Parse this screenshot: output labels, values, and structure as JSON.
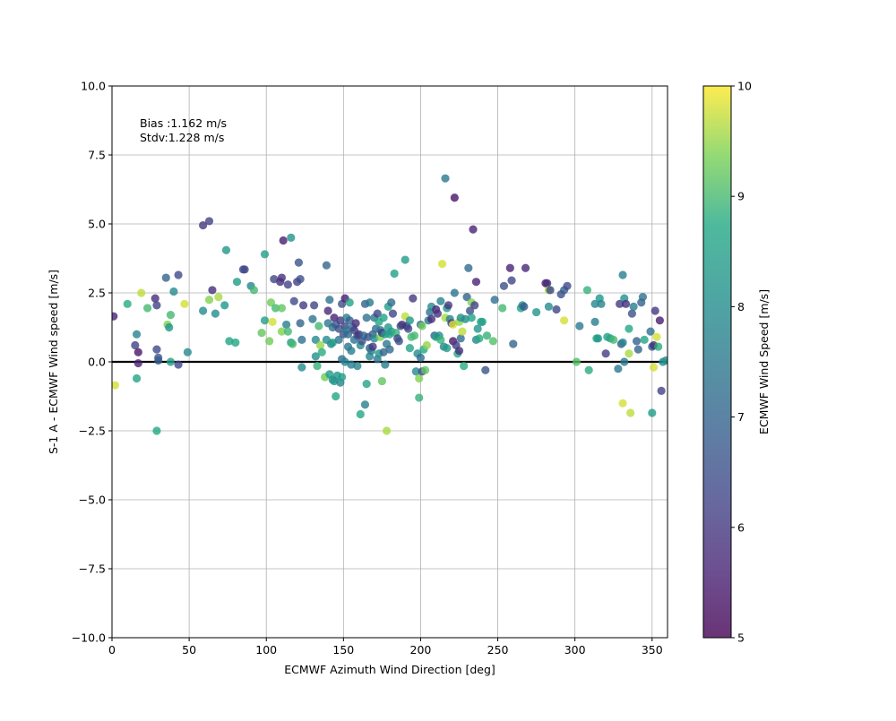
{
  "chart_data": {
    "type": "scatter",
    "xlabel": "ECMWF Azimuth Wind Direction [deg]",
    "ylabel": "S-1 A - ECMWF Wind speed [m/s]",
    "xlim": [
      0,
      360
    ],
    "ylim": [
      -10,
      10
    ],
    "xticks": [
      0,
      50,
      100,
      150,
      200,
      250,
      300,
      350
    ],
    "yticks": [
      -10.0,
      -7.5,
      -5.0,
      -2.5,
      0.0,
      2.5,
      5.0,
      7.5,
      10.0
    ],
    "xtick_labels": [
      "0",
      "50",
      "100",
      "150",
      "200",
      "250",
      "300",
      "350"
    ],
    "ytick_labels": [
      "−10.0",
      "−7.5",
      "−5.0",
      "−2.5",
      "0.0",
      "2.5",
      "5.0",
      "7.5",
      "10.0"
    ],
    "grid": true,
    "zero_line": 0,
    "annotations": [
      "Bias :1.162 m/s",
      "Stdv:1.228 m/s"
    ],
    "colorbar": {
      "label": "ECMWF Wind Speed [m/s]",
      "min": 5,
      "max": 10,
      "ticks": [
        5,
        6,
        7,
        8,
        9,
        10
      ],
      "tick_labels": [
        "5",
        "6",
        "7",
        "8",
        "9",
        "10"
      ],
      "colormap": "viridis"
    },
    "points": [
      [
        1,
        1.65,
        5.6
      ],
      [
        2,
        -0.85,
        9.8
      ],
      [
        10,
        2.1,
        8.8
      ],
      [
        15,
        0.6,
        6.2
      ],
      [
        16,
        1.0,
        7.8
      ],
      [
        16,
        -0.6,
        8.6
      ],
      [
        17,
        0.35,
        5.4
      ],
      [
        17,
        -0.05,
        5.6
      ],
      [
        19,
        2.5,
        9.7
      ],
      [
        23,
        1.95,
        9.0
      ],
      [
        28,
        2.3,
        5.8
      ],
      [
        29,
        0.45,
        6.4
      ],
      [
        29,
        2.05,
        6.2
      ],
      [
        29,
        -2.5,
        8.7
      ],
      [
        30,
        0.15,
        6.6
      ],
      [
        30,
        0.05,
        6.8
      ],
      [
        35,
        3.05,
        7.0
      ],
      [
        36,
        1.35,
        9.4
      ],
      [
        37,
        1.25,
        8.2
      ],
      [
        38,
        1.7,
        9.0
      ],
      [
        38,
        0.0,
        8.5
      ],
      [
        40,
        2.55,
        7.9
      ],
      [
        43,
        3.15,
        6.4
      ],
      [
        43,
        -0.1,
        6.3
      ],
      [
        47,
        2.1,
        9.8
      ],
      [
        49,
        0.35,
        7.9
      ],
      [
        59,
        1.85,
        8.0
      ],
      [
        59,
        4.95,
        6.0
      ],
      [
        63,
        2.25,
        9.4
      ],
      [
        63,
        5.1,
        6.2
      ],
      [
        65,
        2.6,
        5.8
      ],
      [
        67,
        1.75,
        8.0
      ],
      [
        69,
        2.35,
        9.6
      ],
      [
        73,
        2.05,
        8.3
      ],
      [
        74,
        4.05,
        8.3
      ],
      [
        76,
        0.75,
        8.6
      ],
      [
        80,
        0.7,
        8.7
      ],
      [
        81,
        2.9,
        8.4
      ],
      [
        85,
        3.35,
        6.5
      ],
      [
        86,
        3.35,
        6.3
      ],
      [
        90,
        2.75,
        7.8
      ],
      [
        92,
        2.6,
        9.0
      ],
      [
        97,
        1.05,
        9.2
      ],
      [
        99,
        1.5,
        8.5
      ],
      [
        99,
        3.9,
        8.5
      ],
      [
        102,
        0.75,
        9.3
      ],
      [
        103,
        2.15,
        9.3
      ],
      [
        104,
        1.45,
        9.8
      ],
      [
        105,
        3.0,
        6.3
      ],
      [
        106,
        1.95,
        9.0
      ],
      [
        109,
        2.9,
        5.8
      ],
      [
        110,
        1.1,
        9.4
      ],
      [
        110,
        1.95,
        9.2
      ],
      [
        110,
        3.05,
        5.9
      ],
      [
        111,
        4.4,
        5.5
      ],
      [
        113,
        1.35,
        7.6
      ],
      [
        114,
        1.1,
        9.0
      ],
      [
        114,
        2.8,
        6.2
      ],
      [
        116,
        0.7,
        8.4
      ],
      [
        116,
        4.5,
        8.2
      ],
      [
        117,
        0.65,
        9.0
      ],
      [
        118,
        2.2,
        6.4
      ],
      [
        120,
        2.9,
        6.2
      ],
      [
        121,
        3.6,
        6.6
      ],
      [
        122,
        1.4,
        7.0
      ],
      [
        122,
        3.0,
        6.5
      ],
      [
        123,
        0.8,
        7.3
      ],
      [
        123,
        -0.2,
        8.0
      ],
      [
        124,
        2.05,
        6.1
      ],
      [
        130,
        1.55,
        7.4
      ],
      [
        131,
        2.05,
        6.3
      ],
      [
        132,
        0.2,
        8.1
      ],
      [
        132,
        0.8,
        7.9
      ],
      [
        133,
        -0.15,
        8.9
      ],
      [
        134,
        1.3,
        9.0
      ],
      [
        135,
        0.6,
        9.5
      ],
      [
        136,
        0.35,
        8.8
      ],
      [
        138,
        -0.55,
        9.3
      ],
      [
        139,
        3.5,
        7.0
      ],
      [
        139,
        0.8,
        8.0
      ],
      [
        140,
        1.85,
        5.7
      ],
      [
        140,
        1.4,
        7.5
      ],
      [
        141,
        -0.45,
        8.4
      ],
      [
        141,
        2.25,
        7.4
      ],
      [
        142,
        0.65,
        7.8
      ],
      [
        143,
        -0.65,
        8.0
      ],
      [
        143,
        0.7,
        8.5
      ],
      [
        143,
        1.25,
        7.3
      ],
      [
        144,
        1.6,
        5.6
      ],
      [
        144,
        -0.7,
        8.4
      ],
      [
        145,
        1.35,
        6.8
      ],
      [
        145,
        -1.25,
        8.7
      ],
      [
        146,
        -0.5,
        8.2
      ],
      [
        147,
        1.2,
        6.5
      ],
      [
        147,
        0.8,
        7.4
      ],
      [
        148,
        -0.75,
        7.8
      ],
      [
        148,
        1.5,
        6.0
      ],
      [
        149,
        0.1,
        7.2
      ],
      [
        149,
        -0.55,
        8.5
      ],
      [
        149,
        2.1,
        6.5
      ],
      [
        150,
        1.0,
        6.6
      ],
      [
        151,
        1.3,
        6.3
      ],
      [
        151,
        2.3,
        5.5
      ],
      [
        151,
        0.0,
        7.8
      ],
      [
        152,
        1.15,
        7.5
      ],
      [
        152,
        1.6,
        7.6
      ],
      [
        153,
        1.0,
        7.1
      ],
      [
        153,
        0.55,
        7.4
      ],
      [
        154,
        2.15,
        8.6
      ],
      [
        154,
        1.5,
        6.9
      ],
      [
        155,
        0.4,
        7.6
      ],
      [
        155,
        -0.1,
        7.6
      ],
      [
        156,
        1.25,
        7.1
      ],
      [
        157,
        0.8,
        7.3
      ],
      [
        157,
        1.15,
        6.2
      ],
      [
        158,
        1.4,
        5.8
      ],
      [
        159,
        -0.15,
        7.8
      ],
      [
        159,
        0.95,
        6.6
      ],
      [
        160,
        1.0,
        5.9
      ],
      [
        161,
        -1.9,
        8.7
      ],
      [
        161,
        0.6,
        7.9
      ],
      [
        162,
        0.75,
        6.5
      ],
      [
        163,
        0.95,
        7.1
      ],
      [
        164,
        2.1,
        6.9
      ],
      [
        164,
        -1.55,
        7.7
      ],
      [
        165,
        -0.8,
        8.6
      ],
      [
        165,
        1.6,
        7.3
      ],
      [
        166,
        0.9,
        6.6
      ],
      [
        167,
        0.2,
        7.8
      ],
      [
        167,
        0.5,
        7.0
      ],
      [
        167,
        2.15,
        7.5
      ],
      [
        168,
        0.4,
        7.6
      ],
      [
        169,
        0.55,
        6.0
      ],
      [
        169,
        1.0,
        6.8
      ],
      [
        170,
        0.85,
        8.0
      ],
      [
        170,
        1.6,
        7.5
      ],
      [
        171,
        1.2,
        7.2
      ],
      [
        172,
        1.75,
        6.3
      ],
      [
        172,
        0.1,
        7.4
      ],
      [
        173,
        1.45,
        8.7
      ],
      [
        173,
        0.3,
        8.2
      ],
      [
        174,
        0.9,
        9.4
      ],
      [
        174,
        1.15,
        7.6
      ],
      [
        175,
        1.05,
        6.0
      ],
      [
        175,
        -0.7,
        9.2
      ],
      [
        176,
        1.6,
        8.6
      ],
      [
        176,
        0.35,
        7.0
      ],
      [
        177,
        1.0,
        8.3
      ],
      [
        177,
        -0.1,
        7.6
      ],
      [
        178,
        -2.5,
        9.6
      ],
      [
        178,
        0.65,
        7.5
      ],
      [
        179,
        1.25,
        8.3
      ],
      [
        179,
        2.0,
        8.4
      ],
      [
        180,
        1.0,
        8.6
      ],
      [
        180,
        0.45,
        7.2
      ],
      [
        181,
        2.15,
        7.2
      ],
      [
        181,
        1.1,
        8.4
      ],
      [
        182,
        1.75,
        6.3
      ],
      [
        183,
        3.2,
        8.5
      ],
      [
        184,
        1.05,
        8.9
      ],
      [
        185,
        0.85,
        6.3
      ],
      [
        186,
        0.75,
        6.5
      ],
      [
        187,
        1.3,
        6.5
      ],
      [
        188,
        1.35,
        6.0
      ],
      [
        190,
        3.7,
        8.4
      ],
      [
        190,
        1.65,
        9.7
      ],
      [
        191,
        1.3,
        5.8
      ],
      [
        192,
        1.2,
        6.3
      ],
      [
        193,
        1.5,
        8.3
      ],
      [
        193,
        0.5,
        8.6
      ],
      [
        194,
        0.9,
        9.0
      ],
      [
        195,
        2.3,
        6.0
      ],
      [
        196,
        0.95,
        9.0
      ],
      [
        197,
        -0.35,
        7.9
      ],
      [
        198,
        0.3,
        8.0
      ],
      [
        199,
        -1.3,
        8.9
      ],
      [
        199,
        -0.6,
        9.4
      ],
      [
        200,
        0.15,
        7.2
      ],
      [
        200,
        1.35,
        7.1
      ],
      [
        201,
        1.3,
        9.3
      ],
      [
        201,
        -0.35,
        6.4
      ],
      [
        202,
        0.45,
        8.7
      ],
      [
        203,
        -0.3,
        9.2
      ],
      [
        204,
        0.6,
        9.5
      ],
      [
        205,
        1.5,
        7.4
      ],
      [
        206,
        1.8,
        7.3
      ],
      [
        207,
        2.0,
        8.0
      ],
      [
        207,
        1.55,
        5.8
      ],
      [
        209,
        0.95,
        6.8
      ],
      [
        210,
        1.9,
        5.7
      ],
      [
        210,
        0.9,
        8.6
      ],
      [
        211,
        1.75,
        5.9
      ],
      [
        212,
        0.95,
        8.0
      ],
      [
        213,
        0.8,
        8.9
      ],
      [
        213,
        2.2,
        7.8
      ],
      [
        214,
        3.55,
        9.8
      ],
      [
        215,
        0.55,
        7.8
      ],
      [
        216,
        6.65,
        7.5
      ],
      [
        216,
        1.6,
        9.6
      ],
      [
        217,
        1.95,
        8.4
      ],
      [
        217,
        0.5,
        8.4
      ],
      [
        218,
        2.05,
        6.0
      ],
      [
        219,
        1.55,
        7.8
      ],
      [
        220,
        1.4,
        6.0
      ],
      [
        221,
        1.35,
        9.8
      ],
      [
        221,
        0.75,
        5.4
      ],
      [
        222,
        5.95,
        5.4
      ],
      [
        222,
        2.5,
        7.4
      ],
      [
        223,
        0.6,
        6.1
      ],
      [
        224,
        0.3,
        8.7
      ],
      [
        225,
        1.45,
        9.5
      ],
      [
        225,
        0.4,
        5.8
      ],
      [
        226,
        0.85,
        7.2
      ],
      [
        226,
        1.6,
        8.1
      ],
      [
        227,
        1.1,
        9.7
      ],
      [
        228,
        -0.15,
        8.8
      ],
      [
        229,
        1.55,
        8.0
      ],
      [
        230,
        2.35,
        6.9
      ],
      [
        231,
        3.4,
        7.2
      ],
      [
        232,
        1.85,
        6.5
      ],
      [
        233,
        2.15,
        9.4
      ],
      [
        233,
        1.6,
        8.6
      ],
      [
        234,
        4.8,
        5.6
      ],
      [
        235,
        2.05,
        6.2
      ],
      [
        236,
        2.9,
        5.6
      ],
      [
        236,
        0.8,
        7.8
      ],
      [
        237,
        1.2,
        8.2
      ],
      [
        238,
        0.85,
        8.8
      ],
      [
        239,
        1.45,
        8.8
      ],
      [
        240,
        1.45,
        8.5
      ],
      [
        242,
        -0.3,
        6.6
      ],
      [
        243,
        0.95,
        8.9
      ],
      [
        247,
        0.75,
        9.1
      ],
      [
        248,
        2.25,
        7.3
      ],
      [
        253,
        1.95,
        9.0
      ],
      [
        254,
        2.75,
        6.5
      ],
      [
        258,
        3.4,
        5.6
      ],
      [
        259,
        2.95,
        6.3
      ],
      [
        260,
        0.65,
        7.0
      ],
      [
        265,
        1.95,
        8.5
      ],
      [
        266,
        2.05,
        7.9
      ],
      [
        267,
        2.0,
        6.8
      ],
      [
        268,
        3.4,
        5.7
      ],
      [
        275,
        1.8,
        8.2
      ],
      [
        281,
        2.85,
        5.5
      ],
      [
        282,
        2.85,
        5.8
      ],
      [
        283,
        2.0,
        8.0
      ],
      [
        283,
        2.6,
        9.6
      ],
      [
        284,
        2.6,
        6.3
      ],
      [
        288,
        1.9,
        6.3
      ],
      [
        291,
        2.45,
        6.5
      ],
      [
        293,
        2.6,
        6.8
      ],
      [
        293,
        1.5,
        9.8
      ],
      [
        295,
        2.75,
        6.4
      ],
      [
        301,
        0.0,
        9.1
      ],
      [
        303,
        1.3,
        7.5
      ],
      [
        308,
        2.6,
        8.9
      ],
      [
        309,
        -0.3,
        8.8
      ],
      [
        313,
        1.45,
        7.6
      ],
      [
        313,
        2.1,
        7.8
      ],
      [
        314,
        0.85,
        8.7
      ],
      [
        315,
        0.85,
        8.3
      ],
      [
        316,
        2.3,
        8.3
      ],
      [
        317,
        2.1,
        7.8
      ],
      [
        320,
        0.3,
        6.1
      ],
      [
        321,
        0.9,
        8.5
      ],
      [
        323,
        0.85,
        8.6
      ],
      [
        325,
        0.8,
        9.0
      ],
      [
        328,
        -0.25,
        7.5
      ],
      [
        329,
        2.1,
        6.1
      ],
      [
        330,
        0.65,
        6.8
      ],
      [
        331,
        0.7,
        7.8
      ],
      [
        331,
        3.15,
        7.7
      ],
      [
        331,
        -1.5,
        9.8
      ],
      [
        332,
        2.3,
        8.1
      ],
      [
        332,
        0.0,
        7.5
      ],
      [
        333,
        2.1,
        5.8
      ],
      [
        335,
        0.3,
        9.6
      ],
      [
        335,
        1.2,
        8.7
      ],
      [
        336,
        -1.85,
        9.7
      ],
      [
        337,
        1.75,
        6.5
      ],
      [
        338,
        2.0,
        7.7
      ],
      [
        340,
        0.75,
        6.9
      ],
      [
        341,
        0.45,
        7.0
      ],
      [
        343,
        2.15,
        6.9
      ],
      [
        344,
        2.35,
        7.3
      ],
      [
        345,
        0.8,
        8.7
      ],
      [
        349,
        1.1,
        7.3
      ],
      [
        350,
        0.55,
        7.0
      ],
      [
        350,
        -1.85,
        8.4
      ],
      [
        351,
        0.6,
        5.8
      ],
      [
        351,
        -0.2,
        9.8
      ],
      [
        352,
        1.85,
        6.0
      ],
      [
        353,
        0.9,
        9.8
      ],
      [
        354,
        0.55,
        8.8
      ],
      [
        355,
        1.5,
        5.5
      ],
      [
        356,
        -1.05,
        6.2
      ],
      [
        357,
        0.0,
        7.9
      ],
      [
        359,
        0.05,
        8.2
      ]
    ]
  }
}
